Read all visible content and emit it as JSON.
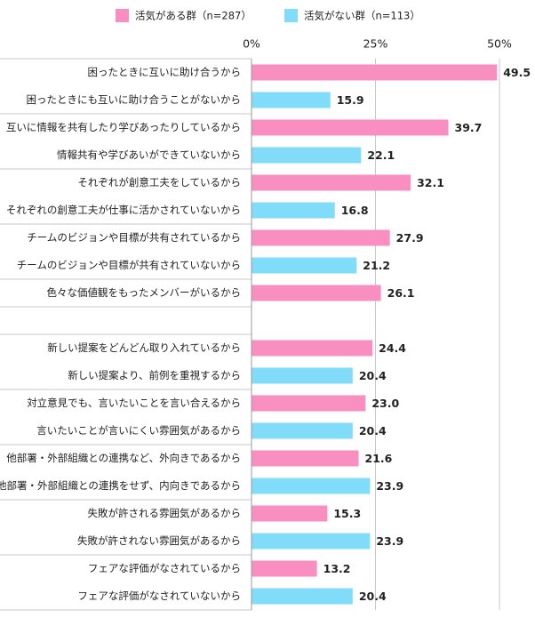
{
  "chart_data": {
    "type": "bar",
    "orientation": "horizontal",
    "categories": [
      "困ったときに互いに助け合うから",
      "困ったときにも互いに助け合うことがないから",
      "互いに情報を共有したり学びあったりしているから",
      "情報共有や学びあいができていないから",
      "それぞれが創意工夫をしているから",
      "それぞれの創意工夫が仕事に活かされていないから",
      "チームのビジョンや目標が共有されているから",
      "チームのビジョンや目標が共有されていないから",
      "色々な価値観をもったメンバーがいるから",
      null,
      "新しい提案をどんどん取り入れているから",
      "新しい提案より、前例を重視するから",
      "対立意見でも、言いたいことを言い合えるから",
      "言いたいことが言いにくい雰囲気があるから",
      "他部署・外部組織との連携など、外向きであるから",
      "他部署・外部組織との連携をせず、内向きであるから",
      "失敗が許される雰囲気があるから",
      "失敗が許されない雰囲気があるから",
      "フェアな評価がなされているから",
      "フェアな評価がなされていないから"
    ],
    "series": [
      {
        "name": "活気がある群（n=287）",
        "color": "#f98fc0",
        "values": [
          49.5,
          null,
          39.7,
          null,
          32.1,
          null,
          27.9,
          null,
          26.1,
          null,
          24.4,
          null,
          23.0,
          null,
          21.6,
          null,
          15.3,
          null,
          13.2,
          null
        ],
        "value_labels": [
          "49.5",
          null,
          "39.7",
          null,
          "32.1",
          null,
          "27.9",
          null,
          "26.1",
          null,
          "24.4",
          null,
          "23.0",
          null,
          "21.6",
          null,
          "15.3",
          null,
          "13.2",
          null
        ]
      },
      {
        "name": "活気がない群（n=113）",
        "color": "#80dcf8",
        "values": [
          null,
          15.9,
          null,
          22.1,
          null,
          16.8,
          null,
          21.2,
          null,
          null,
          null,
          20.4,
          null,
          20.4,
          null,
          23.9,
          null,
          23.9,
          null,
          20.4
        ],
        "value_labels": [
          null,
          "15.9",
          null,
          "22.1",
          null,
          "16.8",
          null,
          "21.2",
          null,
          null,
          null,
          "20.4",
          null,
          "20.4",
          null,
          "23.9",
          null,
          "23.9",
          null,
          "20.4"
        ]
      }
    ],
    "xlim": [
      0,
      50
    ],
    "xticks": [
      {
        "value": 0,
        "label": "0%"
      },
      {
        "value": 25,
        "label": "25%"
      },
      {
        "value": 50,
        "label": "50%"
      }
    ],
    "grid": true
  }
}
